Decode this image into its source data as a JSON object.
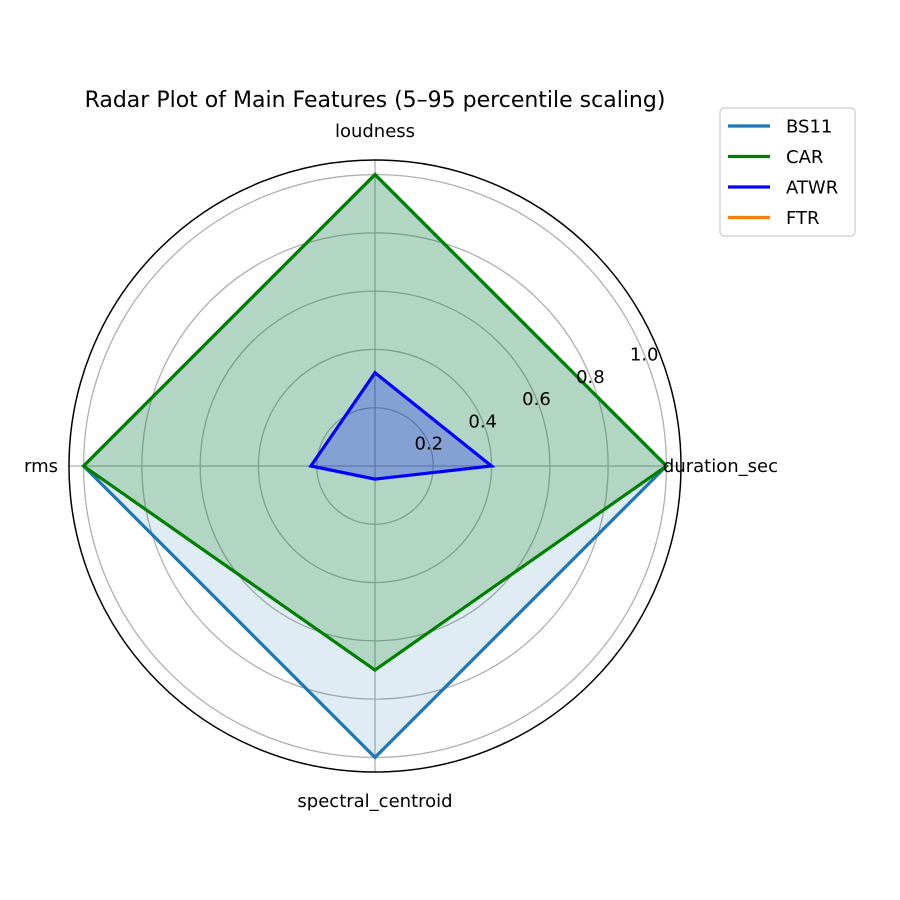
{
  "chart_data": {
    "type": "radar",
    "title": "Radar Plot of Main Features (5–95 percentile scaling)",
    "axes": [
      "duration_sec",
      "loudness",
      "rms",
      "spectral_centroid"
    ],
    "rlim": [
      0,
      1.05
    ],
    "rticks": [
      0.2,
      0.4,
      0.6,
      0.8,
      1.0
    ],
    "rtick_labels": [
      "0.2",
      "0.4",
      "0.6",
      "0.8",
      "1.0"
    ],
    "grid": true,
    "legend_position": "upper-right-outside",
    "series": [
      {
        "name": "BS11",
        "values": [
          1.0,
          1.0,
          1.0,
          1.0
        ],
        "color": "#1f77b4",
        "fill_opacity": 0.14
      },
      {
        "name": "CAR",
        "values": [
          1.0,
          1.0,
          1.0,
          0.7
        ],
        "color": "#008000",
        "fill_opacity": 0.2
      },
      {
        "name": "ATWR",
        "values": [
          0.4,
          0.32,
          0.22,
          0.045
        ],
        "color": "#0000ff",
        "fill_opacity": 0.25
      },
      {
        "name": "FTR",
        "values": [
          0,
          0,
          0,
          0
        ],
        "color": "#ff7f0e",
        "fill_opacity": 0.0
      }
    ]
  }
}
